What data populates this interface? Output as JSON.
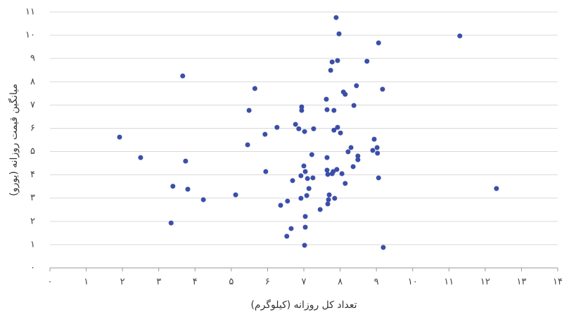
{
  "chart_data": {
    "type": "scatter",
    "x_label": "تعداد کل روزانه (کیلوگرم)",
    "y_label": "میانگین قیمت روزانه (یورو)",
    "color": "#3b4fa8",
    "grid": true,
    "xlim": [
      0,
      14
    ],
    "ylim": [
      0,
      11
    ],
    "xticks": [
      {
        "value": 0,
        "label": "۰"
      },
      {
        "value": 1,
        "label": "۱"
      },
      {
        "value": 2,
        "label": "۲"
      },
      {
        "value": 3,
        "label": "۳"
      },
      {
        "value": 4,
        "label": "۴"
      },
      {
        "value": 5,
        "label": "۵"
      },
      {
        "value": 6,
        "label": "۶"
      },
      {
        "value": 7,
        "label": "۷"
      },
      {
        "value": 8,
        "label": "۸"
      },
      {
        "value": 9,
        "label": "۹"
      },
      {
        "value": 10,
        "label": "۱۰"
      },
      {
        "value": 11,
        "label": "۱۱"
      },
      {
        "value": 12,
        "label": "۱۲"
      },
      {
        "value": 13,
        "label": "۱۳"
      },
      {
        "value": 14,
        "label": "۱۴"
      }
    ],
    "yticks": [
      {
        "value": 0,
        "label": "۰"
      },
      {
        "value": 1,
        "label": "۱"
      },
      {
        "value": 2,
        "label": "۲"
      },
      {
        "value": 3,
        "label": "۳"
      },
      {
        "value": 4,
        "label": "۴"
      },
      {
        "value": 5,
        "label": "۵"
      },
      {
        "value": 6,
        "label": "۶"
      },
      {
        "value": 7,
        "label": "۷"
      },
      {
        "value": 8,
        "label": "۸"
      },
      {
        "value": 9,
        "label": "۹"
      },
      {
        "value": 10,
        "label": "۱۰"
      },
      {
        "value": 11,
        "label": "۱۱"
      }
    ],
    "x": [
      1.92,
      2.5,
      3.39,
      3.34,
      3.66,
      3.74,
      3.8,
      4.23,
      5.12,
      5.45,
      5.49,
      5.65,
      5.93,
      5.95,
      6.26,
      6.36,
      6.53,
      6.55,
      6.65,
      6.69,
      6.77,
      6.86,
      6.92,
      6.92,
      6.94,
      6.94,
      7.0,
      7.02,
      7.02,
      7.04,
      7.04,
      7.04,
      7.08,
      7.1,
      7.14,
      7.22,
      7.25,
      7.27,
      7.45,
      7.62,
      7.64,
      7.64,
      7.64,
      7.66,
      7.66,
      7.68,
      7.7,
      7.74,
      7.78,
      7.78,
      7.81,
      7.83,
      7.83,
      7.85,
      7.89,
      7.91,
      7.93,
      7.93,
      7.97,
      8.01,
      8.05,
      8.09,
      8.14,
      8.14,
      8.22,
      8.3,
      8.36,
      8.38,
      8.45,
      8.49,
      8.49,
      8.74,
      8.9,
      8.94,
      9.02,
      9.03,
      9.06,
      9.06,
      9.17,
      9.19,
      11.3,
      12.31
    ],
    "values": [
      5.62,
      4.74,
      3.51,
      1.93,
      8.25,
      4.59,
      3.38,
      2.93,
      3.14,
      5.29,
      6.77,
      7.71,
      5.74,
      4.14,
      6.04,
      2.69,
      1.36,
      2.87,
      1.69,
      3.75,
      6.17,
      5.98,
      3.96,
      2.99,
      6.92,
      6.77,
      4.38,
      0.97,
      5.86,
      2.21,
      1.75,
      4.14,
      3.11,
      3.84,
      3.41,
      4.87,
      3.87,
      5.98,
      2.51,
      7.25,
      6.8,
      4.74,
      4.2,
      4.02,
      2.75,
      2.93,
      3.14,
      8.49,
      8.85,
      4.05,
      4.14,
      5.92,
      6.77,
      2.99,
      10.76,
      4.23,
      8.91,
      6.04,
      10.06,
      5.8,
      4.05,
      7.56,
      7.46,
      3.63,
      4.99,
      5.17,
      4.35,
      6.98,
      7.83,
      4.81,
      4.65,
      8.88,
      5.05,
      5.53,
      5.17,
      4.93,
      9.67,
      3.87,
      7.68,
      0.88,
      9.97,
      3.41
    ]
  }
}
